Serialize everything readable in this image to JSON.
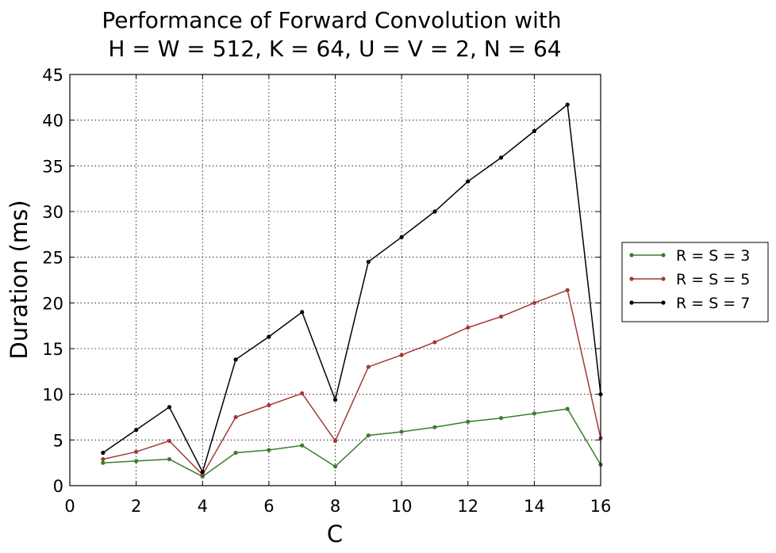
{
  "chart_data": {
    "type": "line",
    "title_line1": "Performance of Forward Convolution with",
    "title_line2": "H = W = 512, K = 64, U = V = 2, N = 64",
    "xlabel": "C",
    "ylabel": "Duration (ms)",
    "xlim": [
      0,
      16
    ],
    "ylim": [
      0,
      45
    ],
    "xticks": [
      0,
      2,
      4,
      6,
      8,
      10,
      12,
      14,
      16
    ],
    "yticks": [
      0,
      5,
      10,
      15,
      20,
      25,
      30,
      35,
      40,
      45
    ],
    "grid": true,
    "legend_position": "outside-right",
    "x": [
      1,
      2,
      3,
      4,
      5,
      6,
      7,
      8,
      9,
      10,
      11,
      12,
      13,
      14,
      15,
      16
    ],
    "series": [
      {
        "name": "R = S = 3",
        "color": "#3a7d2c",
        "values": [
          2.5,
          2.7,
          2.9,
          1.0,
          3.6,
          3.9,
          4.4,
          2.1,
          5.5,
          5.9,
          6.4,
          7.0,
          7.4,
          7.9,
          8.4,
          2.3
        ]
      },
      {
        "name": "R = S = 5",
        "color": "#9e3b36",
        "values": [
          2.9,
          3.7,
          4.9,
          1.2,
          7.5,
          8.8,
          10.1,
          4.9,
          13.0,
          14.3,
          15.7,
          17.3,
          18.5,
          20.0,
          21.4,
          5.2
        ]
      },
      {
        "name": "R = S = 7",
        "color": "#000000",
        "values": [
          3.6,
          6.1,
          8.6,
          1.5,
          13.8,
          16.3,
          19.0,
          9.4,
          24.5,
          27.2,
          30.0,
          33.3,
          35.9,
          38.8,
          41.7,
          10.0
        ]
      }
    ]
  }
}
